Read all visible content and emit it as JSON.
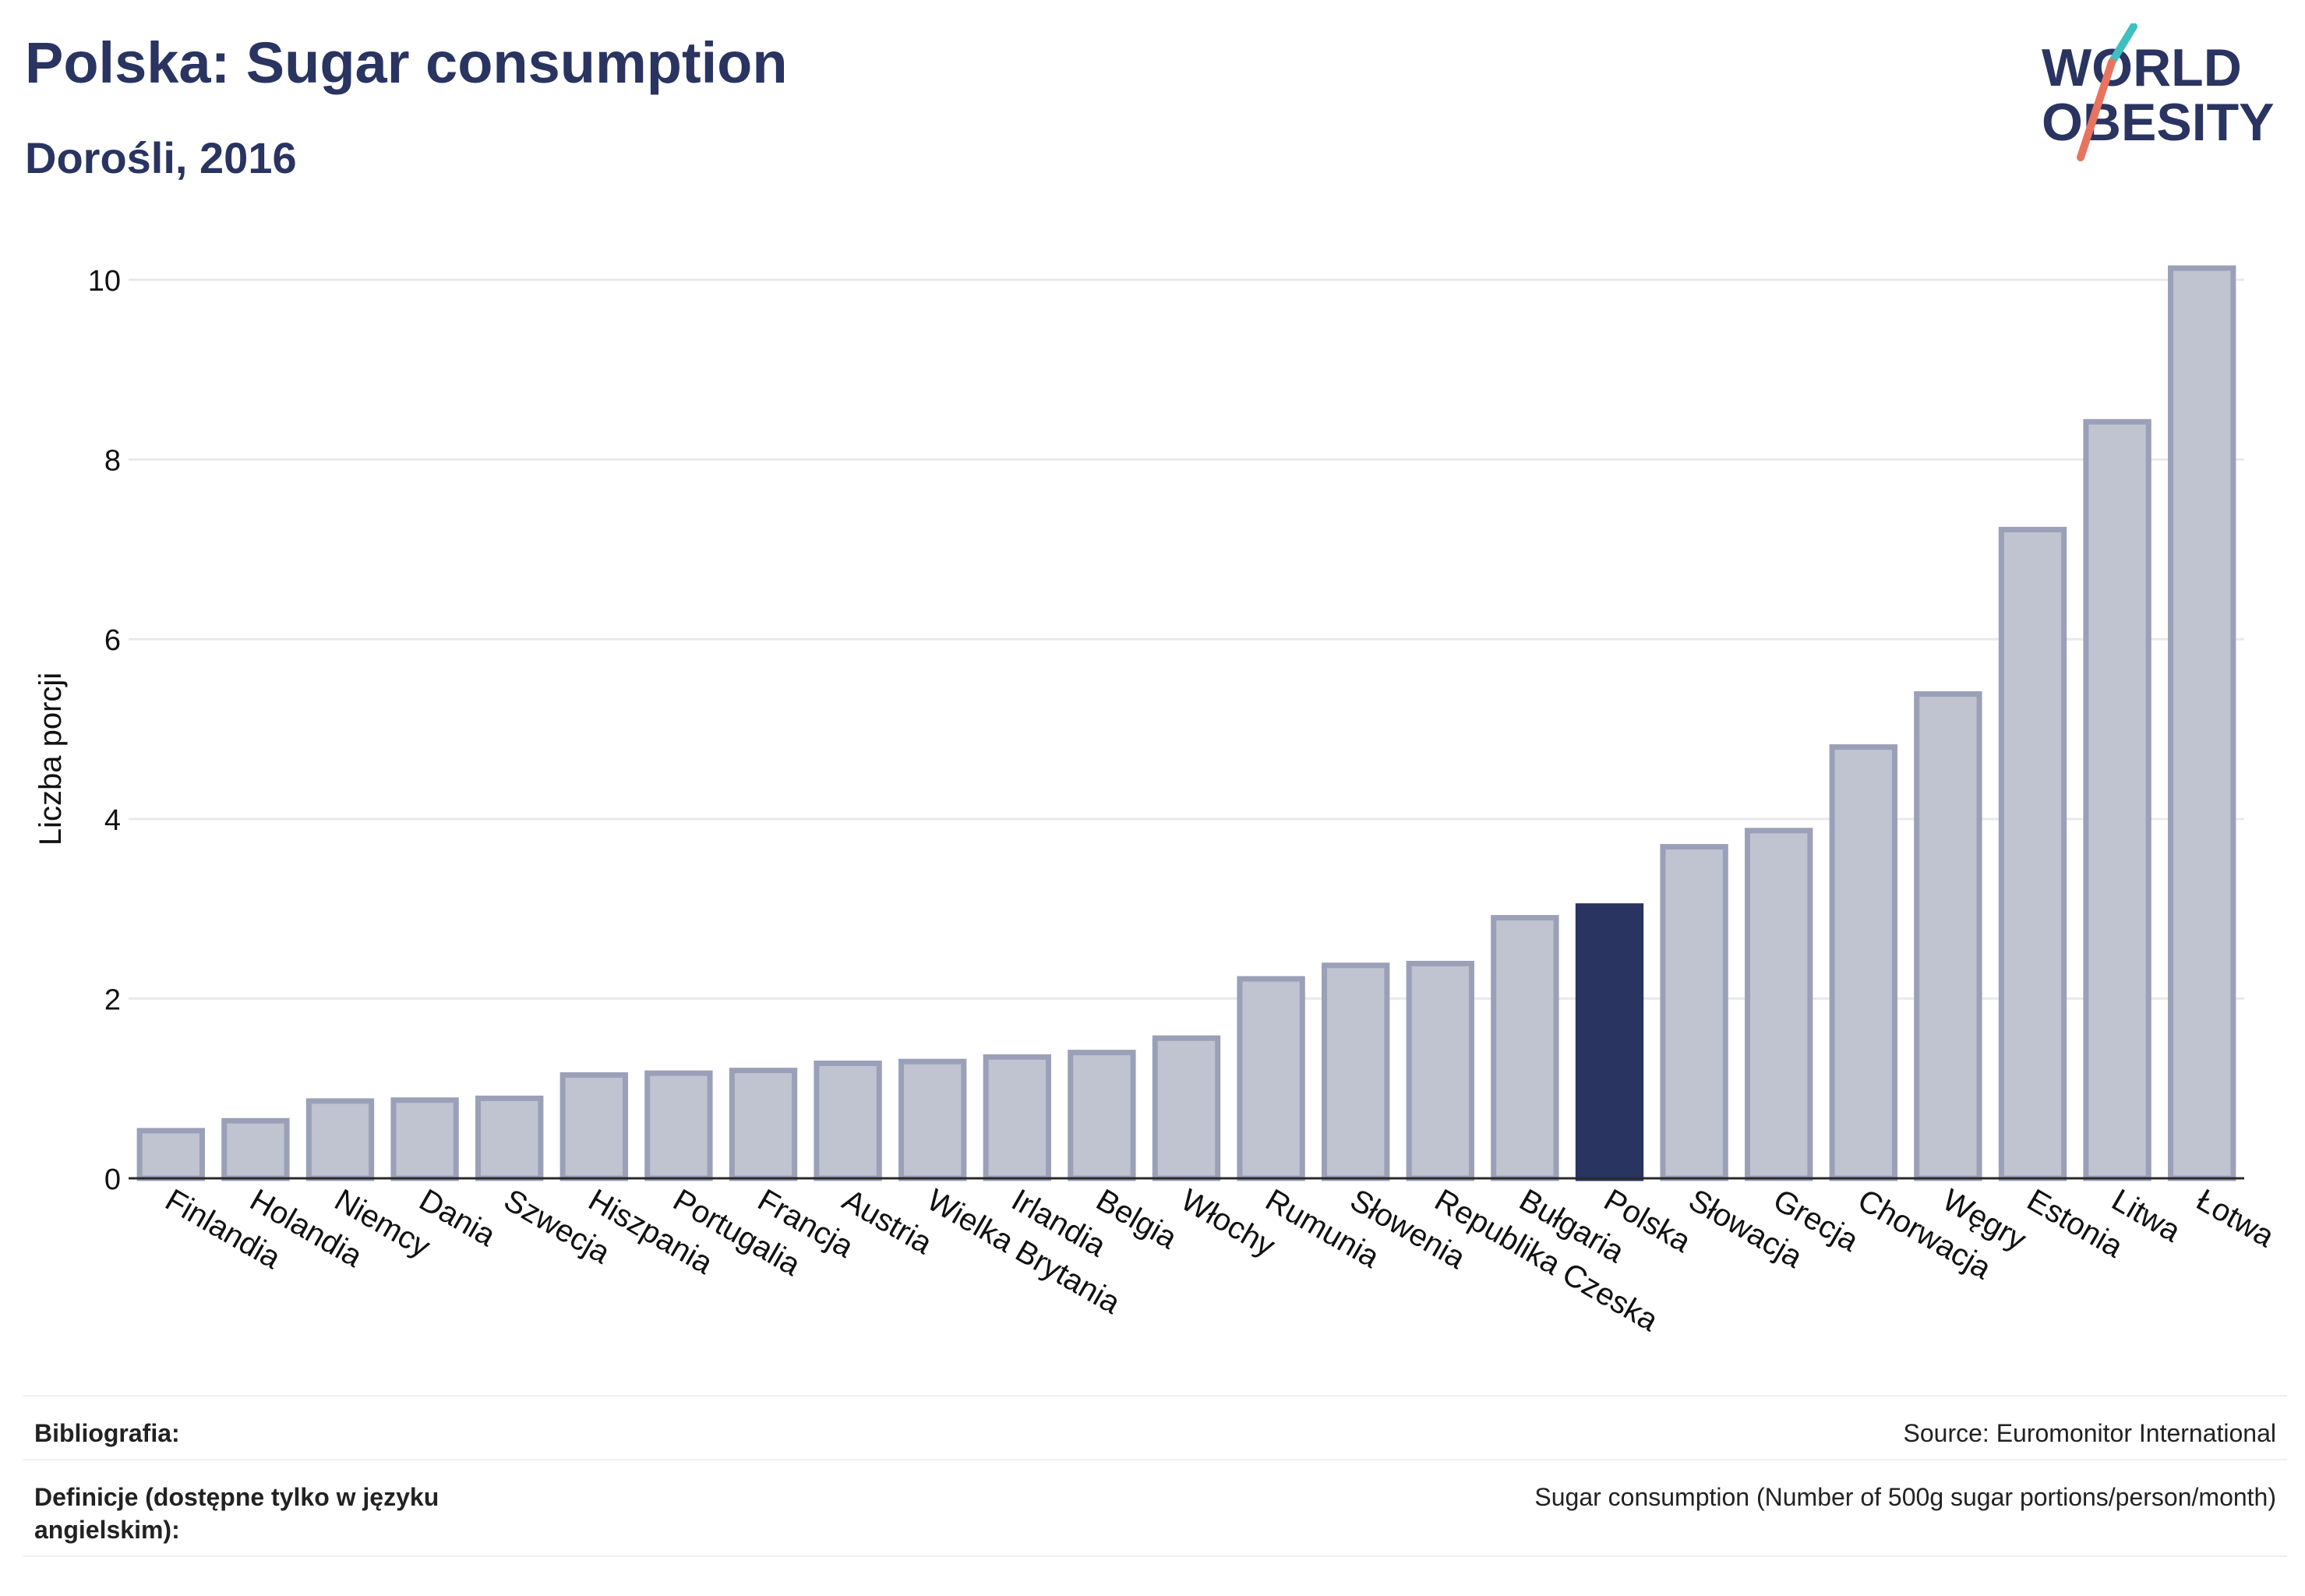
{
  "header": {
    "title": "Polska: Sugar consumption",
    "subtitle": "Dorośli, 2016"
  },
  "logo": {
    "line1": "WORLD",
    "line2": "OBESITY"
  },
  "colors": {
    "highlight": "#2a3461",
    "bar_fill": "#c0c3d0",
    "bar_stroke": "#9aa0b8",
    "grid": "#e8e9ee",
    "logo_teal": "#3fbfbf",
    "logo_coral": "#e8735e"
  },
  "chart_data": {
    "type": "bar",
    "ylabel": "Liczba porcji",
    "xlabel": "",
    "ylim": [
      0,
      10.2
    ],
    "yticks": [
      0,
      2,
      4,
      6,
      8,
      10
    ],
    "grid": true,
    "highlight": "Polska",
    "categories": [
      "Finlandia",
      "Holandia",
      "Niemcy",
      "Dania",
      "Szwecja",
      "Hiszpania",
      "Portugalia",
      "Francja",
      "Austria",
      "Wielka Brytania",
      "Irlandia",
      "Belgia",
      "Włochy",
      "Rumunia",
      "Słowenia",
      "Republika Czeska",
      "Bułgaria",
      "Polska",
      "Słowacja",
      "Grecja",
      "Chorwacja",
      "Węgry",
      "Estonia",
      "Litwa",
      "Łotwa"
    ],
    "values": [
      0.53,
      0.64,
      0.86,
      0.87,
      0.89,
      1.15,
      1.17,
      1.2,
      1.28,
      1.3,
      1.35,
      1.4,
      1.56,
      2.22,
      2.37,
      2.39,
      2.9,
      3.03,
      3.69,
      3.87,
      4.8,
      5.39,
      7.22,
      8.42,
      10.13
    ]
  },
  "footer": {
    "bibliography_label": "Bibliografia:",
    "bibliography_value": "Source: Euromonitor International",
    "definitions_label": "Definicje (dostępne tylko w języku angielskim):",
    "definitions_value": "Sugar consumption (Number of 500g sugar portions/person/month)"
  }
}
